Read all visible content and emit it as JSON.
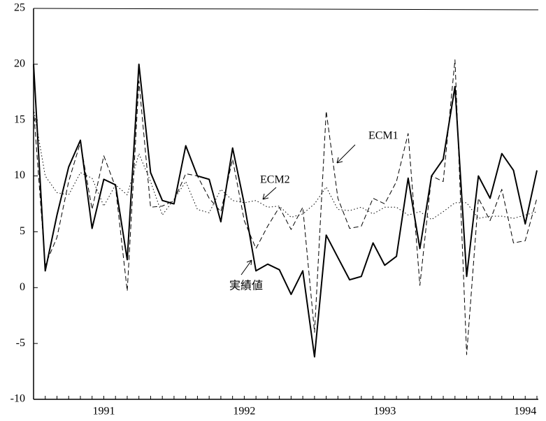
{
  "chart_data": {
    "type": "line",
    "categories": [
      null,
      null,
      null,
      null,
      null,
      null,
      "1991",
      null,
      null,
      null,
      null,
      null,
      null,
      null,
      null,
      null,
      null,
      null,
      "1992",
      null,
      null,
      null,
      null,
      null,
      null,
      null,
      null,
      null,
      null,
      null,
      "1993",
      null,
      null,
      null,
      null,
      null,
      null,
      null,
      null,
      null,
      null,
      null,
      "1994",
      null
    ],
    "series": [
      {
        "name": "実績値",
        "color": "#000000",
        "style": "solid",
        "width": 2,
        "values": [
          20,
          1.5,
          6.5,
          10.8,
          13.2,
          5.3,
          9.7,
          9.2,
          2.5,
          20,
          10.3,
          7.8,
          7.5,
          12.7,
          10,
          9.7,
          5.9,
          12.5,
          7.5,
          1.5,
          2.1,
          1.6,
          -0.6,
          1.5,
          -6.2,
          4.7,
          2.7,
          0.7,
          1.0,
          4.0,
          2.0,
          2.8,
          9.8,
          3.5,
          10,
          11.5,
          18,
          1,
          10,
          8,
          12,
          10.5,
          5.7,
          10.5
        ]
      },
      {
        "name": "ECM1",
        "color": "#000000",
        "style": "dashed",
        "width": 1,
        "values": [
          16,
          2,
          4.5,
          9.5,
          13,
          7,
          11.8,
          9,
          -0.3,
          18.5,
          7.2,
          7.3,
          7.8,
          10.2,
          10,
          8,
          6.8,
          11.5,
          6,
          3.5,
          5.5,
          7.2,
          5.2,
          7.2,
          -4,
          15.8,
          8,
          5.3,
          5.5,
          8,
          7.5,
          9.5,
          13.8,
          0.2,
          10,
          9.5,
          20.4,
          -6,
          8,
          6,
          8.8,
          4,
          4.2,
          8
        ]
      },
      {
        "name": "ECM2",
        "color": "#000000",
        "style": "dotted",
        "width": 1,
        "values": [
          16,
          10,
          8.5,
          8.3,
          10.3,
          9.8,
          7.3,
          9.2,
          8.3,
          12,
          9.5,
          6.5,
          7.9,
          9.5,
          7,
          6.7,
          8.8,
          7.8,
          7.6,
          7.8,
          7.2,
          7.3,
          6.3,
          6.6,
          7.5,
          9,
          7,
          6.9,
          7.2,
          6.6,
          7.2,
          7.2,
          6.5,
          6.8,
          6.1,
          6.8,
          7.6,
          7.6,
          6.2,
          6.4,
          6.4,
          6.2,
          6.5,
          6.8
        ]
      }
    ],
    "ylim": [
      -10,
      25
    ],
    "yticks": [
      -10,
      -5,
      0,
      5,
      10,
      15,
      20,
      25
    ],
    "grid": false
  }
}
